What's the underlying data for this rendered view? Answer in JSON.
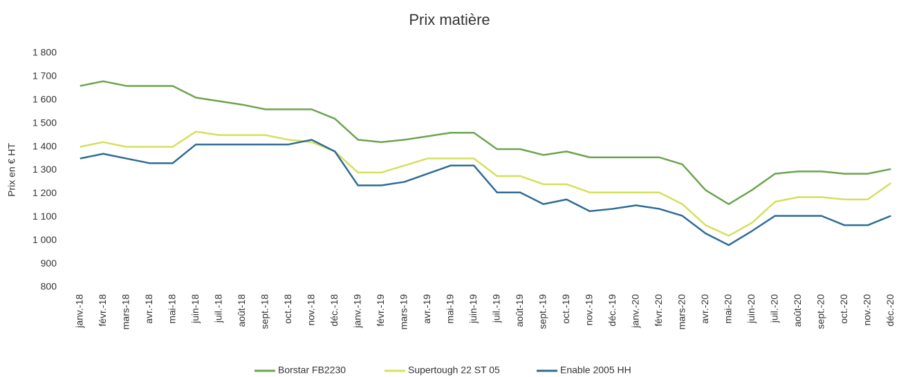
{
  "chart_data": {
    "type": "line",
    "title": "Prix matière",
    "y_label": "Prix en € HT",
    "categories": [
      "janv.-18",
      "févr.-18",
      "mars-18",
      "avr.-18",
      "mai-18",
      "juin-18",
      "juil.-18",
      "août-18",
      "sept.-18",
      "oct.-18",
      "nov.-18",
      "déc.-18",
      "janv.-19",
      "févr.-19",
      "mars-19",
      "avr.-19",
      "mai-19",
      "juin-19",
      "juil.-19",
      "août-19",
      "sept.-19",
      "oct.-19",
      "nov.-19",
      "déc.-19",
      "janv.-20",
      "févr.-20",
      "mars-20",
      "avr.-20",
      "mai-20",
      "juin-20",
      "juil.-20",
      "août-20",
      "sept.-20",
      "oct.-20",
      "nov.-20",
      "déc.-20"
    ],
    "series": [
      {
        "name": "Borstar FB2230",
        "color": "#6aa44c",
        "values": [
          1660,
          1680,
          1660,
          1660,
          1660,
          1610,
          1595,
          1580,
          1560,
          1560,
          1560,
          1520,
          1430,
          1420,
          1430,
          1445,
          1460,
          1460,
          1390,
          1390,
          1365,
          1380,
          1355,
          1355,
          1355,
          1355,
          1325,
          1215,
          1155,
          1215,
          1285,
          1295,
          1295,
          1285,
          1285,
          1305
        ]
      },
      {
        "name": "Supertough 22 ST 05",
        "color": "#d4e05a",
        "values": [
          1400,
          1420,
          1400,
          1400,
          1400,
          1465,
          1450,
          1450,
          1450,
          1430,
          1420,
          1380,
          1290,
          1290,
          1320,
          1350,
          1350,
          1350,
          1275,
          1275,
          1240,
          1240,
          1205,
          1205,
          1205,
          1205,
          1155,
          1065,
          1020,
          1075,
          1165,
          1185,
          1185,
          1175,
          1175,
          1245
        ]
      },
      {
        "name": "Enable 2005 HH",
        "color": "#2c6b94",
        "values": [
          1350,
          1370,
          1350,
          1330,
          1330,
          1410,
          1410,
          1410,
          1410,
          1410,
          1430,
          1380,
          1235,
          1235,
          1250,
          1285,
          1320,
          1320,
          1205,
          1205,
          1155,
          1175,
          1125,
          1135,
          1150,
          1135,
          1105,
          1030,
          980,
          1040,
          1105,
          1105,
          1105,
          1065,
          1065,
          1105
        ]
      }
    ],
    "ylim": [
      800,
      1800
    ],
    "yticks": [
      800,
      900,
      {
        "value": 1000,
        "label": "1 000"
      },
      {
        "value": 1100,
        "label": "1 100"
      },
      {
        "value": 1200,
        "label": "1 200"
      },
      {
        "value": 1300,
        "label": "1 300"
      },
      {
        "value": 1400,
        "label": "1 400"
      },
      {
        "value": 1500,
        "label": "1 500"
      },
      {
        "value": 1600,
        "label": "1 600"
      },
      {
        "value": 1700,
        "label": "1 700"
      },
      {
        "value": 1800,
        "label": "1 800"
      }
    ],
    "legend": "bottom",
    "grid": false
  }
}
